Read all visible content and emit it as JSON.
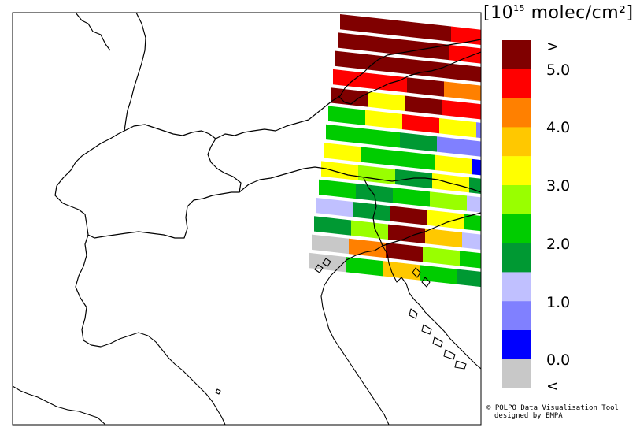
{
  "legend": {
    "unit_prefix": "[10",
    "unit_exponent": "15",
    "unit_suffix": " molec/cm²]",
    "bins": [
      {
        "color": "#800000"
      },
      {
        "color": "#ff0000"
      },
      {
        "color": "#ff8000"
      },
      {
        "color": "#ffc800"
      },
      {
        "color": "#ffff00"
      },
      {
        "color": "#99ff00"
      },
      {
        "color": "#00cc00"
      },
      {
        "color": "#009933"
      },
      {
        "color": "#c0c0ff"
      },
      {
        "color": "#8080ff"
      },
      {
        "color": "#0000ff"
      },
      {
        "color": "#c8c8c8"
      }
    ],
    "labels": [
      ">",
      "5.0",
      "4.0",
      "3.0",
      "2.0",
      "1.0",
      "0.0",
      "<"
    ]
  },
  "credit": {
    "line1": "© POLPO Data Visualisation Tool",
    "line2": "designed by EMPA"
  },
  "swath_rows": [
    [
      "#800000",
      "#800000",
      "#800000",
      "#ff0000",
      "#99ff00"
    ],
    [
      "#800000",
      "#800000",
      "#800000",
      "#ff0000",
      "#ff0000"
    ],
    [
      "#800000",
      "#800000",
      "#800000",
      "#800000",
      "#ff0000"
    ],
    [
      "#ff0000",
      "#ff0000",
      "#800000",
      "#ff8000",
      "#ff0000"
    ],
    [
      "#800000",
      "#ffff00",
      "#800000",
      "#ff0000",
      "#ff0000"
    ],
    [
      "#00cc00",
      "#ffff00",
      "#ff0000",
      "#ffff00",
      "#8080ff"
    ],
    [
      "#00cc00",
      "#00cc00",
      "#009933",
      "#8080ff",
      "#8080ff"
    ],
    [
      "#ffff00",
      "#00cc00",
      "#00cc00",
      "#ffff00",
      "#0000ff"
    ],
    [
      "#ffff00",
      "#99ff00",
      "#009933",
      "#ffff00",
      "#009933"
    ],
    [
      "#00cc00",
      "#009933",
      "#00cc00",
      "#99ff00",
      "#c0c0ff"
    ],
    [
      "#c0c0ff",
      "#009933",
      "#800000",
      "#ffff00",
      "#00cc00"
    ],
    [
      "#009933",
      "#99ff00",
      "#800000",
      "#ffc800",
      "#c0c0ff"
    ],
    [
      "#c8c8c8",
      "#ff8000",
      "#800000",
      "#99ff00",
      "#00cc00"
    ],
    [
      "#c8c8c8",
      "#00cc00",
      "#ffc800",
      "#00cc00",
      "#009933"
    ]
  ]
}
